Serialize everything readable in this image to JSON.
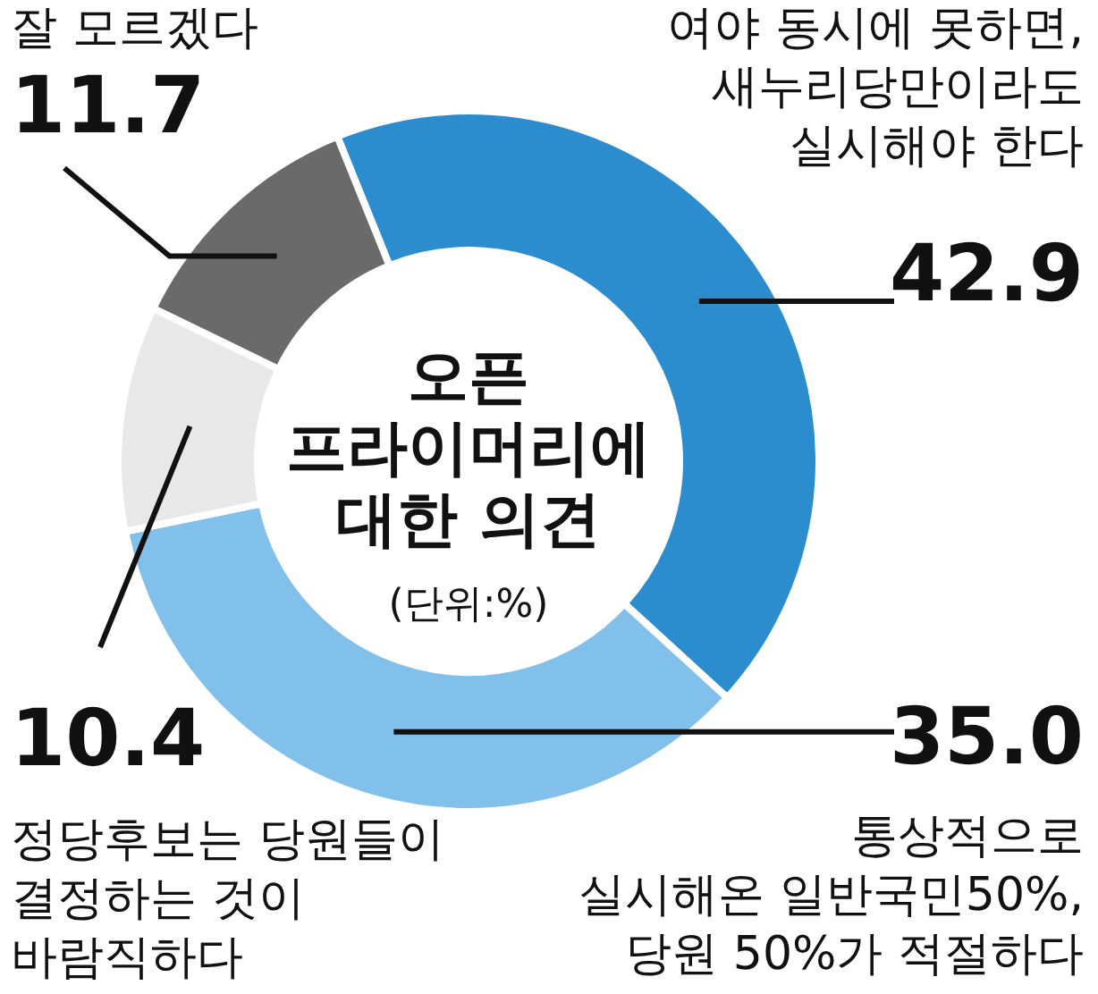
{
  "chart_data": {
    "type": "donut",
    "title": "오픈\n프라이머리에\n대한 의견",
    "subtitle": "(단위:%)",
    "categories": [
      "여야 동시에 못하면,\n새누리당만이라도\n실시해야 한다",
      "통상적으로\n실시해온 일반국민50%,\n당원 50%가 적절하다",
      "정당후보는 당원들이\n결정하는 것이\n바람직하다",
      "잘 모르겠다"
    ],
    "values": [
      42.9,
      35.0,
      10.4,
      11.7
    ],
    "value_labels": [
      "42.9",
      "35.0",
      "10.4",
      "11.7"
    ],
    "colors": [
      "#2b8dcd",
      "#80c0eb",
      "#e8e8e8",
      "#6a6a6a"
    ]
  }
}
